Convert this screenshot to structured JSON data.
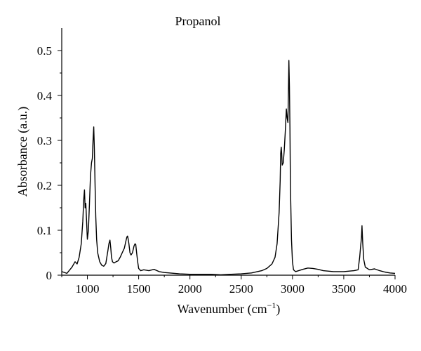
{
  "chart_data": {
    "type": "line",
    "title": "Propanol",
    "xlabel": "Wavenumber (cm",
    "xlabel_superscript": "−1",
    "xlabel_suffix": ")",
    "ylabel": "Absorbance (a.u.)",
    "xlim": [
      750,
      4000
    ],
    "ylim": [
      0,
      0.55
    ],
    "x_ticks": [
      1000,
      1500,
      2000,
      2500,
      3000,
      3500,
      4000
    ],
    "y_ticks": [
      0,
      0.1,
      0.2,
      0.3,
      0.4,
      0.5
    ],
    "x_tick_labels": [
      "1000",
      "1500",
      "2000",
      "2500",
      "3000",
      "3500",
      "4000"
    ],
    "y_tick_labels": [
      "0",
      "0.1",
      "0.2",
      "0.3",
      "0.4",
      "0.5"
    ],
    "grid": false,
    "legend": "none",
    "series": [
      {
        "x": [
          750,
          800,
          850,
          880,
          900,
          920,
          940,
          955,
          965,
          972,
          978,
          985,
          992,
          1000,
          1010,
          1020,
          1030,
          1040,
          1048,
          1055,
          1062,
          1068,
          1075,
          1082,
          1090,
          1100,
          1120,
          1140,
          1160,
          1180,
          1200,
          1210,
          1220,
          1228,
          1235,
          1245,
          1260,
          1280,
          1300,
          1320,
          1340,
          1360,
          1375,
          1385,
          1392,
          1398,
          1405,
          1415,
          1425,
          1440,
          1455,
          1465,
          1472,
          1480,
          1490,
          1500,
          1520,
          1550,
          1600,
          1650,
          1700,
          1750,
          1800,
          1900,
          2000,
          2100,
          2200,
          2300,
          2400,
          2500,
          2600,
          2700,
          2750,
          2800,
          2830,
          2850,
          2870,
          2880,
          2885,
          2890,
          2895,
          2900,
          2910,
          2920,
          2930,
          2940,
          2948,
          2955,
          2960,
          2965,
          2970,
          2975,
          2980,
          2990,
          3000,
          3010,
          3030,
          3060,
          3100,
          3150,
          3200,
          3250,
          3300,
          3400,
          3500,
          3600,
          3640,
          3655,
          3665,
          3672,
          3678,
          3685,
          3695,
          3710,
          3750,
          3800,
          3850,
          3900,
          3950,
          4000
        ],
        "y": [
          0.008,
          0.004,
          0.018,
          0.03,
          0.025,
          0.04,
          0.07,
          0.12,
          0.17,
          0.19,
          0.15,
          0.16,
          0.12,
          0.08,
          0.1,
          0.16,
          0.22,
          0.25,
          0.26,
          0.3,
          0.33,
          0.28,
          0.2,
          0.13,
          0.08,
          0.05,
          0.03,
          0.022,
          0.02,
          0.026,
          0.055,
          0.07,
          0.078,
          0.06,
          0.04,
          0.03,
          0.027,
          0.03,
          0.032,
          0.04,
          0.05,
          0.06,
          0.075,
          0.085,
          0.087,
          0.08,
          0.07,
          0.05,
          0.045,
          0.05,
          0.065,
          0.07,
          0.068,
          0.05,
          0.03,
          0.015,
          0.01,
          0.012,
          0.01,
          0.013,
          0.008,
          0.006,
          0.005,
          0.003,
          0.002,
          0.002,
          0.002,
          0.001,
          0.002,
          0.003,
          0.005,
          0.01,
          0.015,
          0.025,
          0.04,
          0.07,
          0.14,
          0.21,
          0.27,
          0.285,
          0.27,
          0.245,
          0.25,
          0.28,
          0.32,
          0.37,
          0.35,
          0.34,
          0.4,
          0.478,
          0.42,
          0.33,
          0.2,
          0.08,
          0.03,
          0.012,
          0.008,
          0.01,
          0.013,
          0.016,
          0.015,
          0.013,
          0.01,
          0.008,
          0.008,
          0.01,
          0.012,
          0.04,
          0.065,
          0.082,
          0.11,
          0.07,
          0.035,
          0.018,
          0.012,
          0.014,
          0.01,
          0.007,
          0.005,
          0.004
        ]
      }
    ]
  }
}
